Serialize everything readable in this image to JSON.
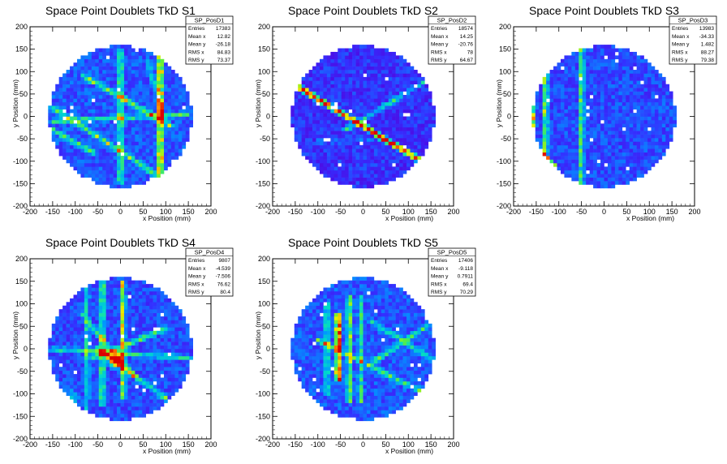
{
  "chart_data": [
    {
      "type": "heatmap",
      "title": "Space Point Doublets TkD S1",
      "xlabel": "x Position (mm)",
      "ylabel": "y Position (mm)",
      "xlim": [
        -200,
        200
      ],
      "ylim": [
        -200,
        200
      ],
      "x_ticks": [
        -200,
        -150,
        -100,
        -50,
        0,
        50,
        100,
        150,
        200
      ],
      "y_ticks": [
        -200,
        -150,
        -100,
        -50,
        0,
        50,
        100,
        150,
        200
      ],
      "stats": {
        "name": "SP_PosD1",
        "entries": "17383",
        "mean_x": "12.82",
        "mean_y": "-26.18",
        "rms_x": "84.83",
        "rms_y": "73.37"
      },
      "features": [
        {
          "kind": "stripe",
          "axis": "x",
          "at": 88,
          "from": -130,
          "to": 150,
          "weight": 0.9
        },
        {
          "kind": "stripe",
          "axis": "x",
          "at": 0,
          "from": -150,
          "to": 150,
          "weight": 0.5
        },
        {
          "kind": "line",
          "x1": -150,
          "y1": -10,
          "x2": 150,
          "y2": 5,
          "weight": 0.35
        },
        {
          "kind": "line",
          "x1": -150,
          "y1": 20,
          "x2": 110,
          "y2": -150,
          "weight": 0.45
        },
        {
          "kind": "line",
          "x1": -80,
          "y1": 90,
          "x2": 110,
          "y2": -20,
          "weight": 0.5
        },
        {
          "kind": "line",
          "x1": -150,
          "y1": -30,
          "x2": -60,
          "y2": -80,
          "weight": 0.4
        },
        {
          "kind": "line",
          "x1": 60,
          "y1": 120,
          "x2": 95,
          "y2": 0,
          "weight": 0.3
        }
      ],
      "base_level": 0.12
    },
    {
      "type": "heatmap",
      "title": "Space Point Doublets TkD S2",
      "xlabel": "x Position (mm)",
      "ylabel": "y Position (mm)",
      "xlim": [
        -200,
        200
      ],
      "ylim": [
        -200,
        200
      ],
      "x_ticks": [
        -200,
        -150,
        -100,
        -50,
        0,
        50,
        100,
        150,
        200
      ],
      "y_ticks": [
        -200,
        -150,
        -100,
        -50,
        0,
        50,
        100,
        150,
        200
      ],
      "stats": {
        "name": "SP_PosD2",
        "entries": "18574",
        "mean_x": "14.25",
        "mean_y": "-20.76",
        "rms_x": "78",
        "rms_y": "64.67"
      },
      "features": [
        {
          "kind": "line",
          "x1": -150,
          "y1": 70,
          "x2": 130,
          "y2": -100,
          "weight": 1.0
        },
        {
          "kind": "line",
          "x1": -40,
          "y1": -30,
          "x2": 140,
          "y2": 80,
          "weight": 0.35
        },
        {
          "kind": "stripe",
          "axis": "y",
          "at": -55,
          "from": -100,
          "to": 60,
          "weight": 0.12
        }
      ],
      "base_level": 0.05
    },
    {
      "type": "heatmap",
      "title": "Space Point Doublets TkD S3",
      "xlabel": "x Position (mm)",
      "ylabel": "y Position (mm)",
      "xlim": [
        -200,
        200
      ],
      "ylim": [
        -200,
        200
      ],
      "x_ticks": [
        -200,
        -150,
        -100,
        -50,
        0,
        50,
        100,
        150,
        200
      ],
      "y_ticks": [
        -200,
        -150,
        -100,
        -50,
        0,
        50,
        100,
        150,
        200
      ],
      "stats": {
        "name": "SP_PosD3",
        "entries": "13983",
        "mean_x": "-34.33",
        "mean_y": "1.482",
        "rms_x": "88.27",
        "rms_y": "79.38"
      },
      "features": [
        {
          "kind": "stripe",
          "axis": "x",
          "at": -160,
          "from": -100,
          "to": 60,
          "weight": 0.9
        },
        {
          "kind": "stripe",
          "axis": "x",
          "at": -130,
          "from": -120,
          "to": 110,
          "weight": 0.55
        },
        {
          "kind": "stripe",
          "axis": "x",
          "at": -50,
          "from": -150,
          "to": 150,
          "weight": 0.45
        },
        {
          "kind": "line",
          "x1": -150,
          "y1": -70,
          "x2": -110,
          "y2": -110,
          "weight": 0.6
        }
      ],
      "base_level": 0.1
    },
    {
      "type": "heatmap",
      "title": "Space Point Doublets TkD S4",
      "xlabel": "x Position (mm)",
      "ylabel": "y Position (mm)",
      "xlim": [
        -200,
        200
      ],
      "ylim": [
        -200,
        200
      ],
      "x_ticks": [
        -200,
        -150,
        -100,
        -50,
        0,
        50,
        100,
        150,
        200
      ],
      "y_ticks": [
        -200,
        -150,
        -100,
        -50,
        0,
        50,
        100,
        150,
        200
      ],
      "stats": {
        "name": "SP_PosD4",
        "entries": "9807",
        "mean_x": "-4.539",
        "mean_y": "-7.506",
        "rms_x": "76.62",
        "rms_y": "80.4"
      },
      "features": [
        {
          "kind": "stripe",
          "axis": "x",
          "at": -40,
          "from": -130,
          "to": 150,
          "weight": 0.5
        },
        {
          "kind": "stripe",
          "axis": "x",
          "at": 5,
          "from": -110,
          "to": 150,
          "weight": 0.55
        },
        {
          "kind": "stripe",
          "axis": "x",
          "at": -75,
          "from": -150,
          "to": 150,
          "weight": 0.3
        },
        {
          "kind": "line",
          "x1": -150,
          "y1": 0,
          "x2": 150,
          "y2": -20,
          "weight": 0.35
        },
        {
          "kind": "line",
          "x1": -60,
          "y1": -20,
          "x2": 100,
          "y2": 45,
          "weight": 0.45
        },
        {
          "kind": "line",
          "x1": -50,
          "y1": 0,
          "x2": 100,
          "y2": -110,
          "weight": 0.45
        },
        {
          "kind": "line",
          "x1": -90,
          "y1": 80,
          "x2": 30,
          "y2": -60,
          "weight": 0.3
        },
        {
          "kind": "spot",
          "x": -10,
          "y": -25,
          "r": 25,
          "weight": 0.9
        },
        {
          "kind": "spot",
          "x": -110,
          "y": -110,
          "r": 25,
          "weight": 0.35
        }
      ],
      "base_level": 0.1
    },
    {
      "type": "heatmap",
      "title": "Space Point Doublets TkD S5",
      "xlabel": "x Position (mm)",
      "ylabel": "y Position (mm)",
      "xlim": [
        -200,
        200
      ],
      "ylim": [
        -200,
        200
      ],
      "x_ticks": [
        -200,
        -150,
        -100,
        -50,
        0,
        50,
        100,
        150,
        200
      ],
      "y_ticks": [
        -200,
        -150,
        -100,
        -50,
        0,
        50,
        100,
        150,
        200
      ],
      "stats": {
        "name": "SP_PosD5",
        "entries": "17406",
        "mean_x": "-9.118",
        "mean_y": "0.7911",
        "rms_x": "69.4",
        "rms_y": "70.29"
      },
      "features": [
        {
          "kind": "stripe",
          "axis": "x",
          "at": -55,
          "from": -70,
          "to": 80,
          "weight": 1.0
        },
        {
          "kind": "stripe",
          "axis": "x",
          "at": -30,
          "from": -120,
          "to": 120,
          "weight": 0.5
        },
        {
          "kind": "stripe",
          "axis": "x",
          "at": -80,
          "from": -100,
          "to": 100,
          "weight": 0.4
        },
        {
          "kind": "stripe",
          "axis": "x",
          "at": -5,
          "from": -120,
          "to": 120,
          "weight": 0.35
        },
        {
          "kind": "line",
          "x1": -100,
          "y1": 20,
          "x2": 140,
          "y2": -100,
          "weight": 0.4
        },
        {
          "kind": "line",
          "x1": 20,
          "y1": -30,
          "x2": 140,
          "y2": 50,
          "weight": 0.35
        },
        {
          "kind": "line",
          "x1": 20,
          "y1": 60,
          "x2": 150,
          "y2": -20,
          "weight": 0.3
        }
      ],
      "base_level": 0.12
    }
  ]
}
